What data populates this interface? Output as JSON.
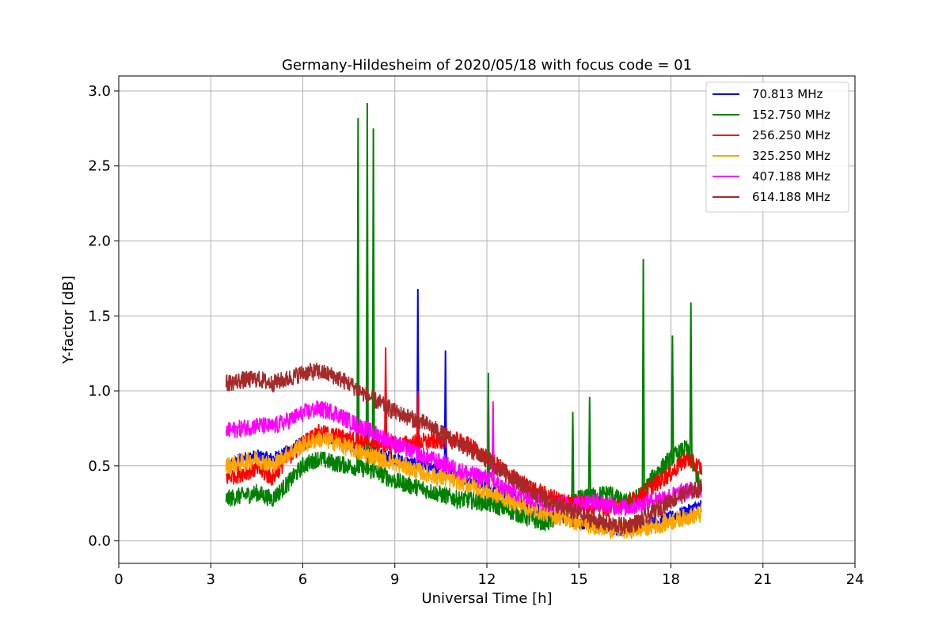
{
  "chart_data": {
    "type": "line",
    "title": "Germany-Hildesheim of 2020/05/18 with focus code = 01",
    "xlabel": "Universal Time [h]",
    "ylabel": "Y-factor [dB]",
    "xlim": [
      0,
      24
    ],
    "ylim": [
      -0.15,
      3.1
    ],
    "xticks": [
      "0",
      "3",
      "6",
      "9",
      "12",
      "15",
      "18",
      "21",
      "24"
    ],
    "yticks": [
      "0.0",
      "0.5",
      "1.0",
      "1.5",
      "2.0",
      "2.5",
      "3.0"
    ],
    "grid": true,
    "legend_position": "top-right",
    "series": [
      {
        "name": " 70.813 MHz",
        "color": "#0000ff",
        "x": [
          3.5,
          4.0,
          4.5,
          5.0,
          5.5,
          6.0,
          6.5,
          7.0,
          7.5,
          8.0,
          8.5,
          9.0,
          9.5,
          9.75,
          10.0,
          10.5,
          10.65,
          11.0,
          11.5,
          12.0,
          12.5,
          13.0,
          13.5,
          14.0,
          14.5,
          15.0,
          15.5,
          16.0,
          16.5,
          17.0,
          17.5,
          18.0,
          18.5,
          19.0
        ],
        "y": [
          0.5,
          0.55,
          0.57,
          0.55,
          0.6,
          0.66,
          0.7,
          0.68,
          0.64,
          0.6,
          0.58,
          0.55,
          0.52,
          1.68,
          0.5,
          0.46,
          1.27,
          0.43,
          0.4,
          0.37,
          0.32,
          0.27,
          0.22,
          0.18,
          0.15,
          0.12,
          0.1,
          0.08,
          0.07,
          0.1,
          0.13,
          0.16,
          0.2,
          0.24
        ]
      },
      {
        "name": "152.750 MHz",
        "color": "#008000",
        "x": [
          3.5,
          4.0,
          4.5,
          5.0,
          5.5,
          6.0,
          6.5,
          7.0,
          7.5,
          7.8,
          8.0,
          8.1,
          8.3,
          8.5,
          9.0,
          9.5,
          10.0,
          10.5,
          11.0,
          11.5,
          12.0,
          12.05,
          12.5,
          13.0,
          13.5,
          14.0,
          14.5,
          14.8,
          15.0,
          15.35,
          15.5,
          16.0,
          16.5,
          17.0,
          17.1,
          17.5,
          18.0,
          18.05,
          18.5,
          18.65,
          19.0
        ],
        "y": [
          0.28,
          0.3,
          0.32,
          0.28,
          0.38,
          0.5,
          0.55,
          0.52,
          0.5,
          2.82,
          0.48,
          2.92,
          2.75,
          0.45,
          0.4,
          0.37,
          0.34,
          0.31,
          0.28,
          0.27,
          0.25,
          1.12,
          0.22,
          0.18,
          0.14,
          0.12,
          0.2,
          0.86,
          0.28,
          0.96,
          0.3,
          0.32,
          0.25,
          0.3,
          1.88,
          0.45,
          0.55,
          1.37,
          0.62,
          1.59,
          0.35
        ]
      },
      {
        "name": "256.250 MHz",
        "color": "#ff0000",
        "x": [
          3.5,
          4.0,
          4.5,
          5.0,
          5.5,
          6.0,
          6.5,
          7.0,
          7.5,
          8.0,
          8.5,
          8.7,
          9.0,
          9.5,
          9.75,
          10.0,
          10.5,
          11.0,
          11.5,
          12.0,
          12.5,
          13.0,
          13.5,
          14.0,
          14.5,
          15.0,
          15.5,
          16.0,
          16.5,
          17.0,
          17.5,
          18.0,
          18.5,
          19.0
        ],
        "y": [
          0.42,
          0.45,
          0.48,
          0.42,
          0.55,
          0.65,
          0.72,
          0.7,
          0.68,
          0.66,
          0.65,
          1.29,
          0.64,
          0.65,
          1.0,
          0.66,
          0.67,
          0.67,
          0.63,
          0.55,
          0.48,
          0.4,
          0.34,
          0.3,
          0.27,
          0.25,
          0.24,
          0.22,
          0.24,
          0.3,
          0.38,
          0.45,
          0.55,
          0.48
        ]
      },
      {
        "name": "325.250 MHz",
        "color": "#ffa500",
        "x": [
          3.5,
          4.0,
          4.5,
          5.0,
          5.5,
          6.0,
          6.5,
          7.0,
          7.5,
          8.0,
          8.5,
          9.0,
          9.5,
          10.0,
          10.5,
          11.0,
          11.5,
          12.0,
          12.5,
          13.0,
          13.5,
          14.0,
          14.5,
          15.0,
          15.5,
          16.0,
          16.5,
          17.0,
          17.5,
          18.0,
          18.5,
          19.0
        ],
        "y": [
          0.5,
          0.52,
          0.55,
          0.5,
          0.58,
          0.64,
          0.68,
          0.66,
          0.62,
          0.58,
          0.55,
          0.52,
          0.48,
          0.45,
          0.42,
          0.4,
          0.37,
          0.33,
          0.29,
          0.25,
          0.21,
          0.18,
          0.15,
          0.12,
          0.1,
          0.08,
          0.07,
          0.08,
          0.1,
          0.13,
          0.16,
          0.18
        ]
      },
      {
        "name": "407.188 MHz",
        "color": "#ff00ff",
        "x": [
          3.5,
          4.0,
          4.5,
          5.0,
          5.5,
          6.0,
          6.5,
          7.0,
          7.5,
          8.0,
          8.5,
          9.0,
          9.5,
          10.0,
          10.5,
          11.0,
          11.5,
          12.0,
          12.2,
          12.5,
          13.0,
          13.5,
          14.0,
          14.5,
          15.0,
          15.5,
          16.0,
          16.5,
          17.0,
          17.5,
          18.0,
          18.5,
          19.0
        ],
        "y": [
          0.73,
          0.75,
          0.77,
          0.76,
          0.8,
          0.85,
          0.88,
          0.86,
          0.8,
          0.75,
          0.7,
          0.65,
          0.6,
          0.56,
          0.52,
          0.48,
          0.44,
          0.42,
          0.93,
          0.36,
          0.32,
          0.28,
          0.25,
          0.24,
          0.25,
          0.26,
          0.24,
          0.22,
          0.24,
          0.28,
          0.3,
          0.33,
          0.35
        ]
      },
      {
        "name": "614.188 MHz",
        "color": "#a52a2a",
        "x": [
          3.5,
          4.0,
          4.5,
          5.0,
          5.5,
          6.0,
          6.5,
          7.0,
          7.5,
          8.0,
          8.5,
          9.0,
          9.5,
          10.0,
          10.5,
          11.0,
          11.5,
          12.0,
          12.5,
          13.0,
          13.5,
          14.0,
          14.5,
          15.0,
          15.5,
          16.0,
          16.5,
          17.0,
          17.5,
          18.0,
          18.5,
          19.0
        ],
        "y": [
          1.05,
          1.07,
          1.08,
          1.05,
          1.08,
          1.12,
          1.13,
          1.1,
          1.05,
          0.98,
          0.92,
          0.86,
          0.82,
          0.78,
          0.72,
          0.66,
          0.6,
          0.54,
          0.47,
          0.4,
          0.33,
          0.27,
          0.22,
          0.18,
          0.14,
          0.11,
          0.1,
          0.13,
          0.2,
          0.27,
          0.32,
          0.35
        ]
      }
    ]
  }
}
